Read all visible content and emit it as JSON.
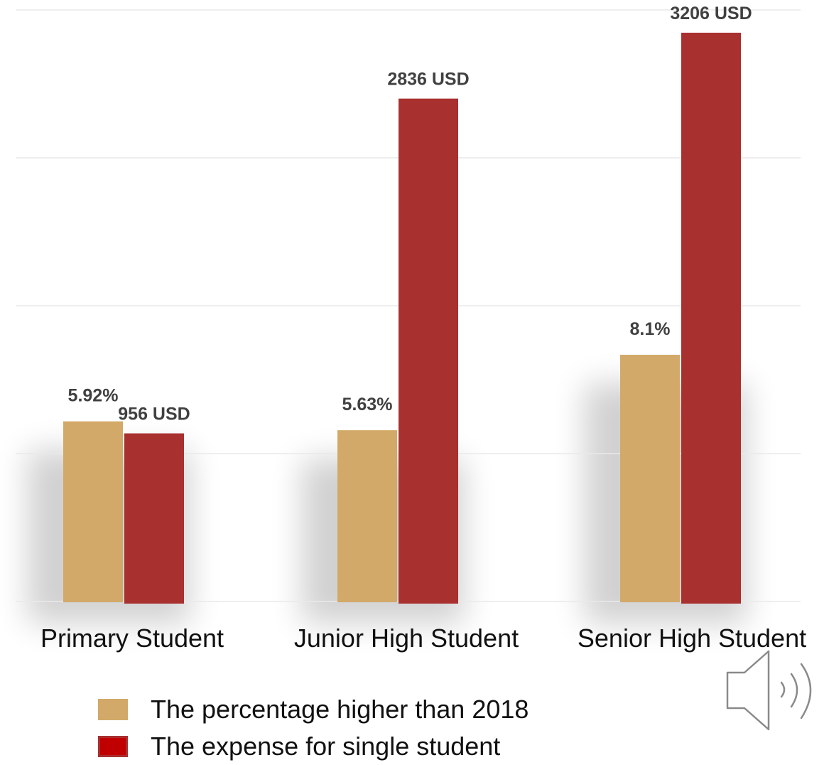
{
  "chart_data": {
    "type": "bar",
    "categories": [
      "Primary Student",
      "Junior High Student",
      "Senior High Student"
    ],
    "series": [
      {
        "name": "The percentage higher than 2018",
        "values": [
          5.92,
          5.63,
          8.1
        ],
        "labels": [
          "5.92%",
          "5.63%",
          "8.1%"
        ],
        "color": "#D2A968"
      },
      {
        "name": "The expense for single student",
        "values": [
          956,
          2836,
          3206
        ],
        "labels": [
          "956 USD",
          "2836 USD",
          "3206 USD"
        ],
        "color": "#A8302F"
      }
    ],
    "legend_swatch_colors": [
      "#D2A968",
      "#C00000"
    ],
    "grid": true,
    "legend_position": "bottom",
    "axis_labels_visible": false
  },
  "icons": {
    "speaker": "speaker-icon"
  }
}
